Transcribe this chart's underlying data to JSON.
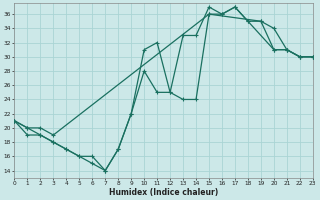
{
  "xlabel": "Humidex (Indice chaleur)",
  "bg_color": "#cce8e8",
  "grid_color": "#aad4d4",
  "line_color": "#1a7060",
  "line1_x": [
    0,
    1,
    2,
    3,
    4,
    5,
    6,
    7,
    8,
    9,
    10,
    11,
    12,
    13,
    14,
    15,
    16,
    17,
    18,
    20,
    21,
    22,
    23
  ],
  "line1_y": [
    21,
    19,
    19,
    18,
    17,
    16,
    16,
    14,
    17,
    22,
    28,
    25,
    25,
    24,
    24,
    36,
    36,
    37,
    35,
    31,
    31,
    30,
    30
  ],
  "line2_x": [
    0,
    1,
    2,
    3,
    4,
    5,
    6,
    7,
    8,
    9,
    10,
    11,
    12,
    13,
    14,
    15,
    16,
    17,
    18,
    19,
    20,
    21,
    22,
    23
  ],
  "line2_y": [
    21,
    20,
    19,
    18,
    17,
    16,
    15,
    14,
    17,
    22,
    31,
    32,
    25,
    33,
    33,
    37,
    36,
    37,
    35,
    35,
    31,
    31,
    30,
    30
  ],
  "line3_x": [
    0,
    1,
    2,
    3,
    15,
    19,
    20,
    21,
    22,
    23
  ],
  "line3_y": [
    21,
    20,
    20,
    19,
    36,
    35,
    34,
    31,
    30,
    30
  ],
  "xlim": [
    0,
    23
  ],
  "ylim": [
    13,
    37.5
  ],
  "yticks": [
    14,
    16,
    18,
    20,
    22,
    24,
    26,
    28,
    30,
    32,
    34,
    36
  ],
  "xticks": [
    0,
    1,
    2,
    3,
    4,
    5,
    6,
    7,
    8,
    9,
    10,
    11,
    12,
    13,
    14,
    15,
    16,
    17,
    18,
    19,
    20,
    21,
    22,
    23
  ]
}
